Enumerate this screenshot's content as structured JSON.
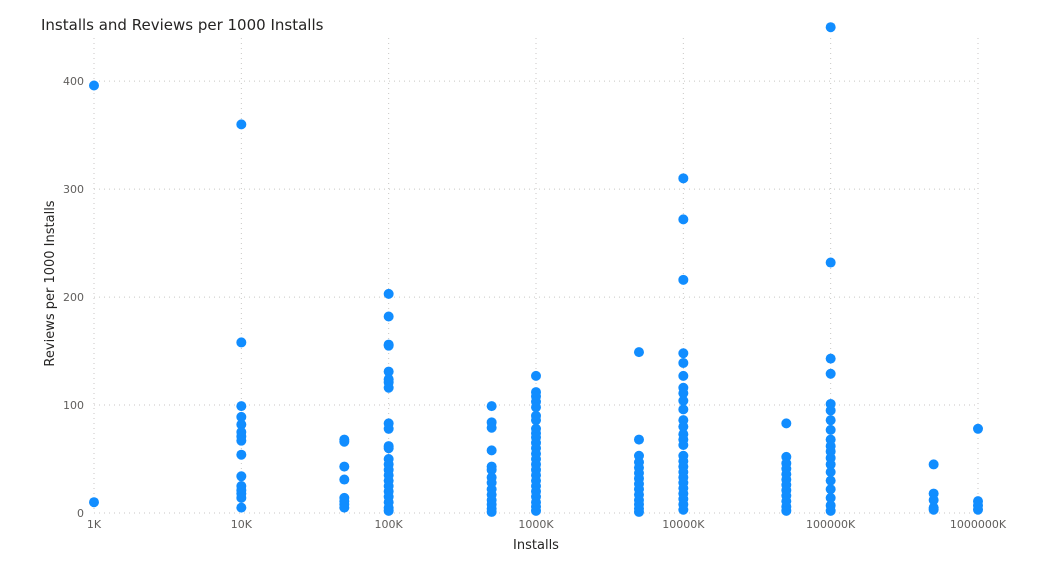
{
  "chart_data": {
    "type": "scatter",
    "title": "Installs and Reviews per 1000 Installs",
    "xlabel": "Installs",
    "ylabel": "Reviews per 1000 Installs",
    "x_scale": "log",
    "x_ticks": [
      "1K",
      "10K",
      "100K",
      "1000K",
      "10000K",
      "100000K",
      "1000000K"
    ],
    "x_tick_values": [
      1000,
      10000,
      100000,
      1000000,
      10000000,
      100000000,
      1000000000
    ],
    "y_ticks": [
      "0",
      "100",
      "200",
      "300",
      "400"
    ],
    "ylim": [
      0,
      440
    ],
    "xlim": [
      1000,
      1000000000
    ],
    "grid": true,
    "color": "#118DFF",
    "series": [
      {
        "points": [
          [
            1000,
            396
          ],
          [
            1000,
            10
          ],
          [
            10000,
            360
          ],
          [
            10000,
            158
          ],
          [
            10000,
            99
          ],
          [
            10000,
            89
          ],
          [
            10000,
            82
          ],
          [
            10000,
            75
          ],
          [
            10000,
            71
          ],
          [
            10000,
            67
          ],
          [
            10000,
            54
          ],
          [
            10000,
            34
          ],
          [
            10000,
            25
          ],
          [
            10000,
            21
          ],
          [
            10000,
            18
          ],
          [
            10000,
            14
          ],
          [
            10000,
            5
          ],
          [
            50000,
            68
          ],
          [
            50000,
            66
          ],
          [
            50000,
            43
          ],
          [
            50000,
            31
          ],
          [
            50000,
            14
          ],
          [
            50000,
            11
          ],
          [
            50000,
            8
          ],
          [
            50000,
            5
          ],
          [
            100000,
            203
          ],
          [
            100000,
            182
          ],
          [
            100000,
            156
          ],
          [
            100000,
            155
          ],
          [
            100000,
            131
          ],
          [
            100000,
            124
          ],
          [
            100000,
            121
          ],
          [
            100000,
            116
          ],
          [
            100000,
            83
          ],
          [
            100000,
            78
          ],
          [
            100000,
            62
          ],
          [
            100000,
            60
          ],
          [
            100000,
            50
          ],
          [
            100000,
            45
          ],
          [
            100000,
            40
          ],
          [
            100000,
            35
          ],
          [
            100000,
            30
          ],
          [
            100000,
            25
          ],
          [
            100000,
            20
          ],
          [
            100000,
            15
          ],
          [
            100000,
            10
          ],
          [
            100000,
            5
          ],
          [
            100000,
            2
          ],
          [
            500000,
            99
          ],
          [
            500000,
            84
          ],
          [
            500000,
            79
          ],
          [
            500000,
            58
          ],
          [
            500000,
            43
          ],
          [
            500000,
            40
          ],
          [
            500000,
            33
          ],
          [
            500000,
            28
          ],
          [
            500000,
            22
          ],
          [
            500000,
            17
          ],
          [
            500000,
            12
          ],
          [
            500000,
            8
          ],
          [
            500000,
            4
          ],
          [
            500000,
            1
          ],
          [
            1000000,
            127
          ],
          [
            1000000,
            112
          ],
          [
            1000000,
            108
          ],
          [
            1000000,
            103
          ],
          [
            1000000,
            98
          ],
          [
            1000000,
            90
          ],
          [
            1000000,
            86
          ],
          [
            1000000,
            78
          ],
          [
            1000000,
            74
          ],
          [
            1000000,
            70
          ],
          [
            1000000,
            65
          ],
          [
            1000000,
            60
          ],
          [
            1000000,
            55
          ],
          [
            1000000,
            50
          ],
          [
            1000000,
            45
          ],
          [
            1000000,
            40
          ],
          [
            1000000,
            35
          ],
          [
            1000000,
            30
          ],
          [
            1000000,
            25
          ],
          [
            1000000,
            20
          ],
          [
            1000000,
            15
          ],
          [
            1000000,
            10
          ],
          [
            1000000,
            6
          ],
          [
            1000000,
            2
          ],
          [
            5000000,
            149
          ],
          [
            5000000,
            68
          ],
          [
            5000000,
            53
          ],
          [
            5000000,
            47
          ],
          [
            5000000,
            42
          ],
          [
            5000000,
            37
          ],
          [
            5000000,
            32
          ],
          [
            5000000,
            27
          ],
          [
            5000000,
            22
          ],
          [
            5000000,
            17
          ],
          [
            5000000,
            12
          ],
          [
            5000000,
            8
          ],
          [
            5000000,
            4
          ],
          [
            5000000,
            1
          ],
          [
            10000000,
            310
          ],
          [
            10000000,
            272
          ],
          [
            10000000,
            216
          ],
          [
            10000000,
            148
          ],
          [
            10000000,
            139
          ],
          [
            10000000,
            127
          ],
          [
            10000000,
            116
          ],
          [
            10000000,
            111
          ],
          [
            10000000,
            104
          ],
          [
            10000000,
            96
          ],
          [
            10000000,
            86
          ],
          [
            10000000,
            80
          ],
          [
            10000000,
            73
          ],
          [
            10000000,
            68
          ],
          [
            10000000,
            63
          ],
          [
            10000000,
            53
          ],
          [
            10000000,
            48
          ],
          [
            10000000,
            43
          ],
          [
            10000000,
            38
          ],
          [
            10000000,
            33
          ],
          [
            10000000,
            28
          ],
          [
            10000000,
            23
          ],
          [
            10000000,
            18
          ],
          [
            10000000,
            13
          ],
          [
            10000000,
            8
          ],
          [
            10000000,
            3
          ],
          [
            50000000,
            83
          ],
          [
            50000000,
            52
          ],
          [
            50000000,
            46
          ],
          [
            50000000,
            41
          ],
          [
            50000000,
            36
          ],
          [
            50000000,
            31
          ],
          [
            50000000,
            26
          ],
          [
            50000000,
            21
          ],
          [
            50000000,
            16
          ],
          [
            50000000,
            11
          ],
          [
            50000000,
            6
          ],
          [
            50000000,
            2
          ],
          [
            100000000,
            450
          ],
          [
            100000000,
            232
          ],
          [
            100000000,
            143
          ],
          [
            100000000,
            129
          ],
          [
            100000000,
            101
          ],
          [
            100000000,
            95
          ],
          [
            100000000,
            86
          ],
          [
            100000000,
            77
          ],
          [
            100000000,
            68
          ],
          [
            100000000,
            62
          ],
          [
            100000000,
            57
          ],
          [
            100000000,
            51
          ],
          [
            100000000,
            45
          ],
          [
            100000000,
            38
          ],
          [
            100000000,
            30
          ],
          [
            100000000,
            22
          ],
          [
            100000000,
            14
          ],
          [
            100000000,
            7
          ],
          [
            100000000,
            2
          ],
          [
            500000000,
            45
          ],
          [
            500000000,
            18
          ],
          [
            500000000,
            12
          ],
          [
            500000000,
            5
          ],
          [
            500000000,
            3
          ],
          [
            1000000000,
            78
          ],
          [
            1000000000,
            11
          ],
          [
            1000000000,
            7
          ],
          [
            1000000000,
            3
          ]
        ]
      }
    ]
  }
}
